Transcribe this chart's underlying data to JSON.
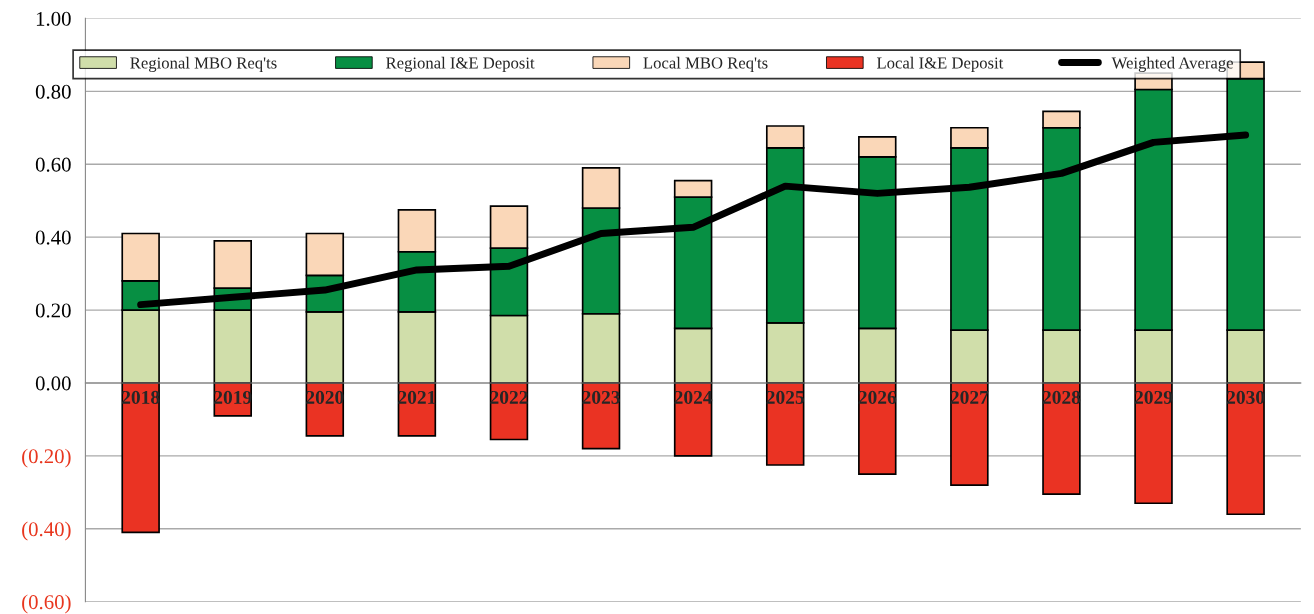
{
  "chart_data": {
    "type": "bar",
    "stacked": true,
    "categories": [
      "2018",
      "2019",
      "2020",
      "2021",
      "2022",
      "2023",
      "2024",
      "2025",
      "2026",
      "2027",
      "2028",
      "2029",
      "2030"
    ],
    "series": [
      {
        "name": "Regional MBO Req'ts",
        "color": "#d0deaa",
        "values": [
          0.2,
          0.2,
          0.195,
          0.195,
          0.185,
          0.19,
          0.15,
          0.165,
          0.15,
          0.145,
          0.145,
          0.145,
          0.145
        ]
      },
      {
        "name": "Regional I&E Deposit",
        "color": "#078f43",
        "values": [
          0.08,
          0.06,
          0.1,
          0.165,
          0.185,
          0.29,
          0.36,
          0.48,
          0.47,
          0.5,
          0.555,
          0.66,
          0.69
        ]
      },
      {
        "name": "Local MBO Req'ts",
        "color": "#fad7b8",
        "values": [
          0.13,
          0.13,
          0.115,
          0.115,
          0.115,
          0.11,
          0.045,
          0.06,
          0.055,
          0.055,
          0.045,
          0.045,
          0.045
        ]
      },
      {
        "name": "Local I&E Deposit",
        "color": "#ea3323",
        "values": [
          -0.41,
          -0.09,
          -0.145,
          -0.145,
          -0.155,
          -0.18,
          -0.2,
          -0.225,
          -0.25,
          -0.28,
          -0.305,
          -0.33,
          -0.36
        ]
      },
      {
        "name": "Weighted Average",
        "type": "line",
        "color": "#000000",
        "values": [
          0.215,
          0.235,
          0.255,
          0.31,
          0.32,
          0.41,
          0.427,
          0.54,
          0.52,
          0.537,
          0.575,
          0.66,
          0.68
        ]
      }
    ],
    "ylim": [
      -0.6,
      1.0
    ],
    "yticks": [
      {
        "value": -0.6,
        "label": "(0.60)"
      },
      {
        "value": -0.4,
        "label": "(0.40)"
      },
      {
        "value": -0.2,
        "label": "(0.20)"
      },
      {
        "value": 0,
        "label": "0.00"
      },
      {
        "value": 0.2,
        "label": "0.20"
      },
      {
        "value": 0.4,
        "label": "0.40"
      },
      {
        "value": 0.6,
        "label": "0.60"
      },
      {
        "value": 0.8,
        "label": "0.80"
      },
      {
        "value": 1.0,
        "label": "1.00"
      }
    ],
    "grid": "y",
    "legend": "top",
    "marker": "none",
    "line_style": "solid"
  }
}
